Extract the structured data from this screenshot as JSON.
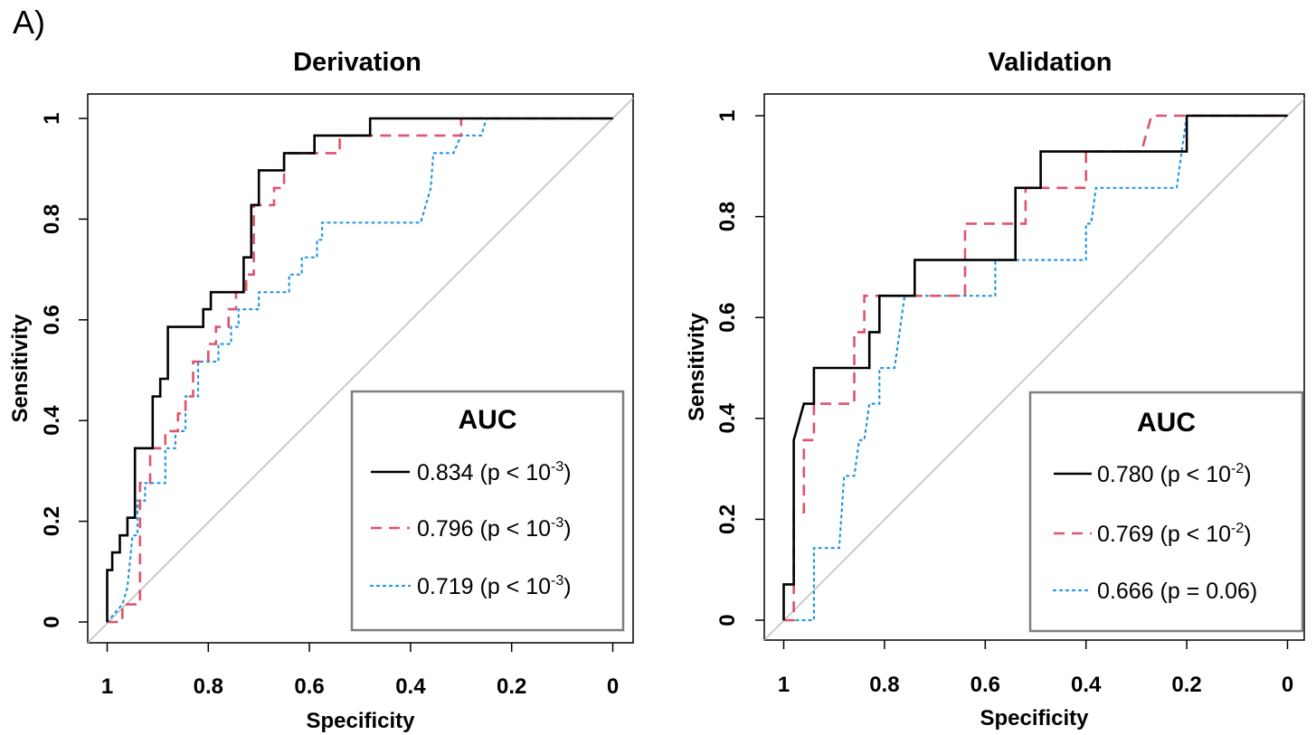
{
  "panel_label": "A)",
  "chart_data": [
    {
      "type": "line",
      "title": "Derivation",
      "xlabel": "Specificity",
      "ylabel": "Sensitivity",
      "xlim": [
        1,
        0
      ],
      "ylim": [
        0,
        1
      ],
      "x_ticks": [
        "1",
        "0.8",
        "0.6",
        "0.4",
        "0.2",
        "0"
      ],
      "y_ticks": [
        "0",
        "0.2",
        "0.4",
        "0.6",
        "0.8",
        "1"
      ],
      "diagonal": true,
      "legend": {
        "title": "AUC",
        "placement": "bottom-right",
        "entries": [
          {
            "prefix": "0.834 (p < 10",
            "sup": "-3",
            "suffix": ")"
          },
          {
            "prefix": "0.796 (p < 10",
            "sup": "-3",
            "suffix": ")"
          },
          {
            "prefix": "0.719 (p < 10",
            "sup": "-3",
            "suffix": ")"
          }
        ]
      },
      "series": [
        {
          "color": "#000000",
          "style": "solid",
          "points": [
            [
              1,
              0
            ],
            [
              1,
              0.103
            ],
            [
              0.99,
              0.103
            ],
            [
              0.99,
              0.138
            ],
            [
              0.975,
              0.138
            ],
            [
              0.975,
              0.172
            ],
            [
              0.96,
              0.172
            ],
            [
              0.96,
              0.207
            ],
            [
              0.945,
              0.207
            ],
            [
              0.945,
              0.345
            ],
            [
              0.91,
              0.345
            ],
            [
              0.91,
              0.448
            ],
            [
              0.895,
              0.448
            ],
            [
              0.895,
              0.483
            ],
            [
              0.88,
              0.483
            ],
            [
              0.88,
              0.586
            ],
            [
              0.81,
              0.586
            ],
            [
              0.81,
              0.621
            ],
            [
              0.795,
              0.621
            ],
            [
              0.795,
              0.655
            ],
            [
              0.73,
              0.655
            ],
            [
              0.73,
              0.724
            ],
            [
              0.715,
              0.724
            ],
            [
              0.715,
              0.828
            ],
            [
              0.7,
              0.828
            ],
            [
              0.7,
              0.897
            ],
            [
              0.65,
              0.897
            ],
            [
              0.65,
              0.931
            ],
            [
              0.59,
              0.931
            ],
            [
              0.59,
              0.966
            ],
            [
              0.48,
              0.966
            ],
            [
              0.48,
              1
            ],
            [
              0,
              1
            ]
          ]
        },
        {
          "color": "#df536b",
          "style": "dashed",
          "points": [
            [
              1,
              0
            ],
            [
              0.97,
              0
            ],
            [
              0.97,
              0.035
            ],
            [
              0.935,
              0.035
            ],
            [
              0.935,
              0.276
            ],
            [
              0.915,
              0.276
            ],
            [
              0.915,
              0.345
            ],
            [
              0.885,
              0.345
            ],
            [
              0.885,
              0.379
            ],
            [
              0.86,
              0.379
            ],
            [
              0.86,
              0.414
            ],
            [
              0.845,
              0.414
            ],
            [
              0.845,
              0.448
            ],
            [
              0.83,
              0.448
            ],
            [
              0.83,
              0.517
            ],
            [
              0.8,
              0.517
            ],
            [
              0.8,
              0.552
            ],
            [
              0.785,
              0.552
            ],
            [
              0.785,
              0.586
            ],
            [
              0.76,
              0.586
            ],
            [
              0.76,
              0.621
            ],
            [
              0.745,
              0.621
            ],
            [
              0.745,
              0.655
            ],
            [
              0.725,
              0.655
            ],
            [
              0.725,
              0.69
            ],
            [
              0.71,
              0.69
            ],
            [
              0.71,
              0.828
            ],
            [
              0.67,
              0.828
            ],
            [
              0.67,
              0.862
            ],
            [
              0.65,
              0.862
            ],
            [
              0.65,
              0.931
            ],
            [
              0.54,
              0.931
            ],
            [
              0.54,
              0.966
            ],
            [
              0.3,
              0.966
            ],
            [
              0.3,
              1
            ],
            [
              0,
              1
            ]
          ]
        },
        {
          "color": "#2297e6",
          "style": "dotted",
          "points": [
            [
              1,
              0
            ],
            [
              0.97,
              0.035
            ],
            [
              0.96,
              0.069
            ],
            [
              0.95,
              0.172
            ],
            [
              0.94,
              0.172
            ],
            [
              0.94,
              0.241
            ],
            [
              0.925,
              0.241
            ],
            [
              0.925,
              0.276
            ],
            [
              0.885,
              0.276
            ],
            [
              0.885,
              0.345
            ],
            [
              0.865,
              0.345
            ],
            [
              0.865,
              0.379
            ],
            [
              0.845,
              0.379
            ],
            [
              0.845,
              0.448
            ],
            [
              0.82,
              0.448
            ],
            [
              0.82,
              0.517
            ],
            [
              0.78,
              0.517
            ],
            [
              0.78,
              0.552
            ],
            [
              0.755,
              0.552
            ],
            [
              0.755,
              0.586
            ],
            [
              0.74,
              0.586
            ],
            [
              0.74,
              0.621
            ],
            [
              0.7,
              0.621
            ],
            [
              0.7,
              0.655
            ],
            [
              0.64,
              0.655
            ],
            [
              0.64,
              0.69
            ],
            [
              0.615,
              0.69
            ],
            [
              0.615,
              0.724
            ],
            [
              0.585,
              0.724
            ],
            [
              0.585,
              0.759
            ],
            [
              0.575,
              0.759
            ],
            [
              0.575,
              0.793
            ],
            [
              0.38,
              0.793
            ],
            [
              0.36,
              0.862
            ],
            [
              0.355,
              0.931
            ],
            [
              0.315,
              0.931
            ],
            [
              0.3,
              0.966
            ],
            [
              0.26,
              0.966
            ],
            [
              0.25,
              1
            ],
            [
              0,
              1
            ]
          ]
        }
      ]
    },
    {
      "type": "line",
      "title": "Validation",
      "xlabel": "Specificity",
      "ylabel": "Sensitivity",
      "xlim": [
        1,
        0
      ],
      "ylim": [
        0,
        1
      ],
      "x_ticks": [
        "1",
        "0.8",
        "0.6",
        "0.4",
        "0.2",
        "0"
      ],
      "y_ticks": [
        "0",
        "0.2",
        "0.4",
        "0.6",
        "0.8",
        "1"
      ],
      "diagonal": true,
      "legend": {
        "title": "AUC",
        "placement": "bottom-right",
        "entries": [
          {
            "prefix": "0.780 (p < 10",
            "sup": "-2",
            "suffix": ")"
          },
          {
            "prefix": "0.769 (p < 10",
            "sup": "-2",
            "suffix": ")"
          },
          {
            "prefix": "0.666 (p = 0.06)",
            "sup": "",
            "suffix": ""
          }
        ]
      },
      "series": [
        {
          "color": "#000000",
          "style": "solid",
          "points": [
            [
              1,
              0
            ],
            [
              1,
              0.071
            ],
            [
              0.98,
              0.071
            ],
            [
              0.98,
              0.357
            ],
            [
              0.96,
              0.429
            ],
            [
              0.94,
              0.429
            ],
            [
              0.94,
              0.5
            ],
            [
              0.83,
              0.5
            ],
            [
              0.83,
              0.571
            ],
            [
              0.81,
              0.571
            ],
            [
              0.81,
              0.643
            ],
            [
              0.74,
              0.643
            ],
            [
              0.74,
              0.714
            ],
            [
              0.54,
              0.714
            ],
            [
              0.54,
              0.857
            ],
            [
              0.49,
              0.857
            ],
            [
              0.49,
              0.929
            ],
            [
              0.2,
              0.929
            ],
            [
              0.2,
              1
            ],
            [
              0,
              1
            ]
          ]
        },
        {
          "color": "#df536b",
          "style": "dashed",
          "points": [
            [
              1,
              0
            ],
            [
              0.98,
              0
            ],
            [
              0.98,
              0.214
            ],
            [
              0.96,
              0.214
            ],
            [
              0.96,
              0.357
            ],
            [
              0.94,
              0.357
            ],
            [
              0.94,
              0.429
            ],
            [
              0.86,
              0.429
            ],
            [
              0.86,
              0.571
            ],
            [
              0.84,
              0.571
            ],
            [
              0.84,
              0.643
            ],
            [
              0.64,
              0.643
            ],
            [
              0.64,
              0.786
            ],
            [
              0.52,
              0.786
            ],
            [
              0.52,
              0.857
            ],
            [
              0.4,
              0.857
            ],
            [
              0.4,
              0.929
            ],
            [
              0.29,
              0.929
            ],
            [
              0.27,
              1
            ],
            [
              0,
              1
            ]
          ]
        },
        {
          "color": "#2297e6",
          "style": "dotted",
          "points": [
            [
              1,
              0
            ],
            [
              0.94,
              0
            ],
            [
              0.94,
              0.143
            ],
            [
              0.89,
              0.143
            ],
            [
              0.88,
              0.286
            ],
            [
              0.86,
              0.286
            ],
            [
              0.85,
              0.357
            ],
            [
              0.84,
              0.357
            ],
            [
              0.83,
              0.429
            ],
            [
              0.81,
              0.429
            ],
            [
              0.81,
              0.5
            ],
            [
              0.78,
              0.5
            ],
            [
              0.77,
              0.571
            ],
            [
              0.76,
              0.643
            ],
            [
              0.58,
              0.643
            ],
            [
              0.58,
              0.714
            ],
            [
              0.4,
              0.714
            ],
            [
              0.4,
              0.786
            ],
            [
              0.39,
              0.786
            ],
            [
              0.38,
              0.857
            ],
            [
              0.22,
              0.857
            ],
            [
              0.21,
              0.929
            ],
            [
              0.2,
              1
            ],
            [
              0,
              1
            ]
          ]
        }
      ]
    }
  ]
}
